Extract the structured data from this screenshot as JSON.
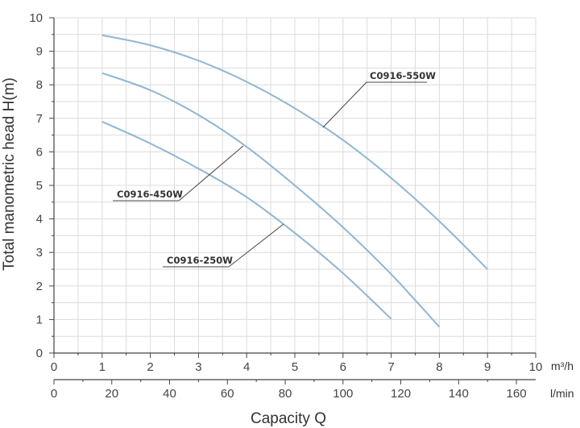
{
  "chart_data": {
    "type": "line",
    "ylabel": "Total manometric head H(m)",
    "xlabel": "Capacity Q",
    "x_unit": "m³/h",
    "x2_unit": "l/min",
    "xlim": [
      0,
      10
    ],
    "ylim": [
      0,
      10
    ],
    "x2lim": [
      0,
      166.67
    ],
    "x_ticks": [
      "0",
      "1",
      "2",
      "3",
      "4",
      "5",
      "6",
      "7",
      "8",
      "9",
      "10"
    ],
    "y_ticks": [
      "0",
      "1",
      "2",
      "3",
      "4",
      "5",
      "6",
      "7",
      "8",
      "9",
      "10"
    ],
    "x2_ticks": [
      "0",
      "20",
      "40",
      "60",
      "80",
      "100",
      "120",
      "140",
      "160"
    ],
    "grid": true,
    "series": [
      {
        "name": "C0916-550W",
        "x": [
          1,
          2,
          3,
          4,
          5,
          6,
          7,
          8,
          9
        ],
        "y": [
          9.48,
          9.18,
          8.72,
          8.09,
          7.3,
          6.35,
          5.22,
          3.93,
          2.5
        ]
      },
      {
        "name": "C0916-450W",
        "x": [
          1,
          2,
          3,
          4,
          5,
          6,
          7,
          8
        ],
        "y": [
          8.35,
          7.84,
          7.1,
          6.15,
          5.0,
          3.75,
          2.35,
          0.78
        ]
      },
      {
        "name": "C0916-250W",
        "x": [
          1,
          2,
          3,
          4,
          5,
          6,
          7
        ],
        "y": [
          6.9,
          6.25,
          5.5,
          4.65,
          3.58,
          2.38,
          1.02
        ]
      }
    ]
  }
}
